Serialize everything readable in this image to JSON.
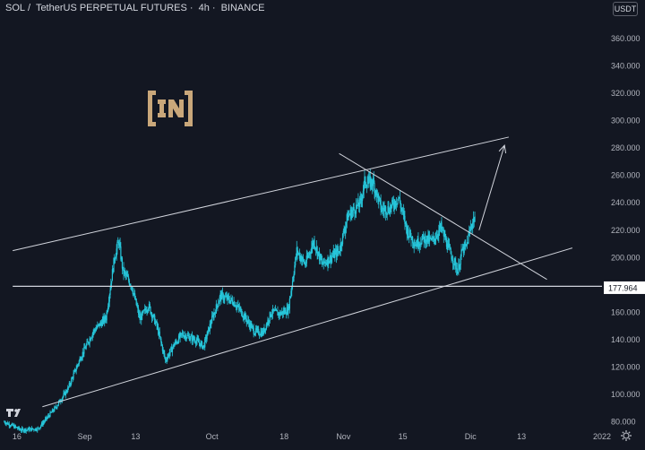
{
  "header": {
    "symbol": "SOL",
    "separator": "/",
    "pair_name": "TetherUS PERPETUAL FUTURES",
    "dot": "·",
    "interval": "4h",
    "dot2": "·",
    "exchange": "BINANCE"
  },
  "currency_button": "USDT",
  "colors": {
    "background": "#131722",
    "candle": "#26c6da",
    "trendline": "#d1d4dc",
    "axis_text": "#b2b5be",
    "price_label_bg": "#ffffff",
    "logo": "#c9a77a"
  },
  "icons": [
    "logo-in-icon",
    "tradingview-logo-icon",
    "settings-gear-icon"
  ],
  "chart_data": {
    "type": "candlestick",
    "symbol": "SOL / TetherUS PERPETUAL FUTURES · 4h · BINANCE",
    "ylim": [
      75,
      375
    ],
    "yticks": [
      80,
      100,
      120,
      140,
      160,
      180,
      200,
      220,
      240,
      260,
      280,
      300,
      320,
      340,
      360
    ],
    "ytick_labels": [
      "80.000",
      "100.000",
      "120.000",
      "140.000",
      "160.000",
      "180.000",
      "200.000",
      "220.000",
      "240.000",
      "260.000",
      "280.000",
      "300.000",
      "320.000",
      "340.000",
      "360.000"
    ],
    "x_date_range": [
      "2021-08-12",
      "2022-01-01"
    ],
    "xticks": [
      {
        "label": "16",
        "date": "2021-08-16"
      },
      {
        "label": "Sep",
        "date": "2021-09-01"
      },
      {
        "label": "13",
        "date": "2021-09-13"
      },
      {
        "label": "Oct",
        "date": "2021-10-01"
      },
      {
        "label": "18",
        "date": "2021-10-18"
      },
      {
        "label": "Nov",
        "date": "2021-11-01"
      },
      {
        "label": "15",
        "date": "2021-11-15"
      },
      {
        "label": "Dic",
        "date": "2021-12-01"
      },
      {
        "label": "13",
        "date": "2021-12-13"
      },
      {
        "label": "2022",
        "date": "2022-01-01"
      }
    ],
    "price_series": [
      [
        "2021-08-13",
        80
      ],
      [
        "2021-08-17",
        74
      ],
      [
        "2021-08-21",
        75
      ],
      [
        "2021-08-25",
        90
      ],
      [
        "2021-08-28",
        104
      ],
      [
        "2021-08-31",
        127
      ],
      [
        "2021-09-03",
        146
      ],
      [
        "2021-09-06",
        156
      ],
      [
        "2021-09-08",
        200
      ],
      [
        "2021-09-09",
        212
      ],
      [
        "2021-09-10",
        190
      ],
      [
        "2021-09-12",
        180
      ],
      [
        "2021-09-14",
        155
      ],
      [
        "2021-09-16",
        165
      ],
      [
        "2021-09-18",
        150
      ],
      [
        "2021-09-20",
        125
      ],
      [
        "2021-09-22",
        136
      ],
      [
        "2021-09-24",
        144
      ],
      [
        "2021-09-27",
        140
      ],
      [
        "2021-09-29",
        135
      ],
      [
        "2021-10-01",
        155
      ],
      [
        "2021-10-03",
        172
      ],
      [
        "2021-10-06",
        168
      ],
      [
        "2021-10-08",
        160
      ],
      [
        "2021-10-11",
        146
      ],
      [
        "2021-10-13",
        145
      ],
      [
        "2021-10-15",
        160
      ],
      [
        "2021-10-17",
        159
      ],
      [
        "2021-10-19",
        162
      ],
      [
        "2021-10-21",
        205
      ],
      [
        "2021-10-23",
        195
      ],
      [
        "2021-10-25",
        212
      ],
      [
        "2021-10-27",
        195
      ],
      [
        "2021-10-29",
        200
      ],
      [
        "2021-10-31",
        205
      ],
      [
        "2021-11-02",
        230
      ],
      [
        "2021-11-05",
        240
      ],
      [
        "2021-11-06",
        255
      ],
      [
        "2021-11-08",
        255
      ],
      [
        "2021-11-10",
        235
      ],
      [
        "2021-11-12",
        236
      ],
      [
        "2021-11-14",
        244
      ],
      [
        "2021-11-16",
        220
      ],
      [
        "2021-11-18",
        210
      ],
      [
        "2021-11-20",
        214
      ],
      [
        "2021-11-22",
        212
      ],
      [
        "2021-11-24",
        222
      ],
      [
        "2021-11-26",
        205
      ],
      [
        "2021-11-28",
        190
      ],
      [
        "2021-11-29",
        205
      ],
      [
        "2021-11-30",
        208
      ],
      [
        "2021-12-01",
        222
      ],
      [
        "2021-12-02",
        230
      ]
    ],
    "price_line": {
      "value": 177.964,
      "label": "177.964"
    },
    "annotations": [
      {
        "type": "line",
        "name": "channel-upper",
        "points": [
          [
            "2021-08-15",
            205.0
          ],
          [
            "2021-12-10",
            288.0
          ]
        ]
      },
      {
        "type": "line",
        "name": "channel-lower",
        "points": [
          [
            "2021-08-22",
            91.0
          ],
          [
            "2021-12-25",
            207.0
          ]
        ]
      },
      {
        "type": "line",
        "name": "descending-resistance",
        "points": [
          [
            "2021-10-31",
            276.0
          ],
          [
            "2021-12-19",
            184.0
          ]
        ]
      },
      {
        "type": "line",
        "name": "horizontal-support",
        "points": [
          [
            "2021-08-15",
            179.0
          ],
          [
            "2022-01-01",
            179.0
          ]
        ]
      },
      {
        "type": "arrow",
        "name": "projection-arrow",
        "points": [
          [
            "2021-12-03",
            220.0
          ],
          [
            "2021-12-09",
            282.0
          ]
        ]
      }
    ]
  }
}
